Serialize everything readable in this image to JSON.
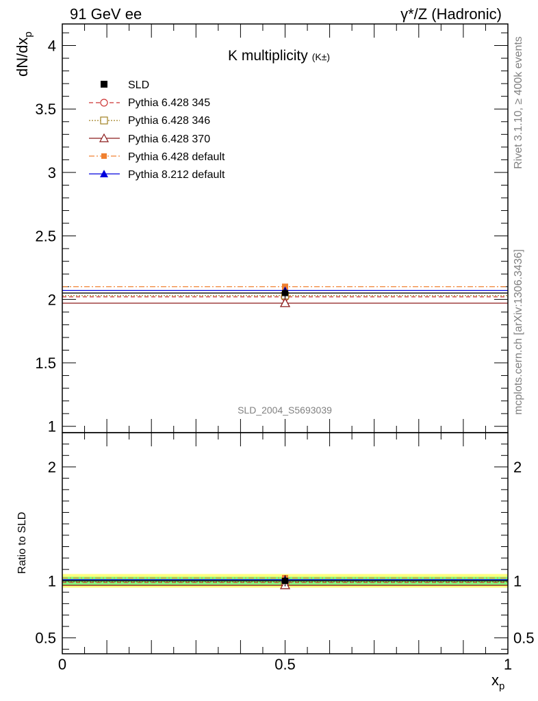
{
  "header": {
    "left": "91 GeV ee",
    "right": "γ*/Z (Hadronic)"
  },
  "side_labels": {
    "rivet": "Rivet 3.1.10, ≥ 400k events",
    "mcplots": "mcplots.cern.ch [arXiv:1306.3436]"
  },
  "watermark": "SLD_2004_S5693039",
  "chart_data": {
    "type": "scatter",
    "title": "K multiplicity",
    "title_sub": "(K±)",
    "ylabel": "dN/dx",
    "ylabel_sub": "p",
    "xlabel": "x",
    "xlabel_sub": "p",
    "ratio_ylabel": "Ratio to SLD",
    "xlim": [
      0,
      1
    ],
    "ylim": [
      0.95,
      4.17
    ],
    "ratio_ylim": [
      0.36,
      2.3
    ],
    "x_ticks": [
      {
        "value": 0,
        "label": "0"
      },
      {
        "value": 0.5,
        "label": "0.5"
      },
      {
        "value": 1,
        "label": "1"
      }
    ],
    "y_ticks": [
      {
        "value": 1,
        "label": "1"
      },
      {
        "value": 1.5,
        "label": "1.5"
      },
      {
        "value": 2,
        "label": "2"
      },
      {
        "value": 2.5,
        "label": "2.5"
      },
      {
        "value": 3,
        "label": "3"
      },
      {
        "value": 3.5,
        "label": "3.5"
      },
      {
        "value": 4,
        "label": "4"
      }
    ],
    "ratio_ticks": [
      {
        "value": 0.5,
        "label": "0.5"
      },
      {
        "value": 1,
        "label": "1"
      },
      {
        "value": 2,
        "label": "2"
      }
    ],
    "data": {
      "name": "SLD",
      "x": 0.5,
      "xmin": 0.0,
      "xmax": 1.0,
      "y": 2.05,
      "err": 0.04,
      "band_inner": [
        0.965,
        1.035
      ],
      "band_outer": [
        0.94,
        1.06
      ]
    },
    "series": [
      {
        "name": "Pythia 6.428 345",
        "x": 0.5,
        "xmin": 0.0,
        "xmax": 1.0,
        "y": 2.02,
        "color": "#cc3333",
        "dash": "6,4",
        "marker": "open-circle"
      },
      {
        "name": "Pythia 6.428 346",
        "x": 0.5,
        "xmin": 0.0,
        "xmax": 1.0,
        "y": 2.03,
        "color": "#a08020",
        "dash": "2,2",
        "marker": "open-square"
      },
      {
        "name": "Pythia 6.428 370",
        "x": 0.5,
        "xmin": 0.0,
        "xmax": 1.0,
        "y": 1.97,
        "color": "#8b1a1a",
        "dash": "",
        "marker": "open-triangle"
      },
      {
        "name": "Pythia 6.428 default",
        "x": 0.5,
        "xmin": 0.0,
        "xmax": 1.0,
        "y": 2.1,
        "color": "#f08030",
        "dash": "8,3,2,3",
        "marker": "filled-square"
      },
      {
        "name": "Pythia 8.212 default",
        "x": 0.5,
        "xmin": 0.0,
        "xmax": 1.0,
        "y": 2.07,
        "color": "#0000dd",
        "dash": "",
        "marker": "filled-triangle"
      }
    ]
  }
}
